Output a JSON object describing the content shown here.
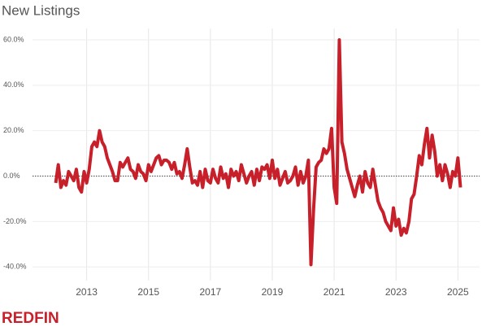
{
  "chart_data": {
    "type": "line",
    "title": "New Listings",
    "x": [
      2012,
      2012.083,
      2012.167,
      2012.25,
      2012.333,
      2012.417,
      2012.5,
      2012.583,
      2012.667,
      2012.75,
      2012.833,
      2012.917,
      2013,
      2013.083,
      2013.167,
      2013.25,
      2013.333,
      2013.417,
      2013.5,
      2013.583,
      2013.667,
      2013.75,
      2013.833,
      2013.917,
      2014,
      2014.083,
      2014.167,
      2014.25,
      2014.333,
      2014.417,
      2014.5,
      2014.583,
      2014.667,
      2014.75,
      2014.833,
      2014.917,
      2015,
      2015.083,
      2015.167,
      2015.25,
      2015.333,
      2015.417,
      2015.5,
      2015.583,
      2015.667,
      2015.75,
      2015.833,
      2015.917,
      2016,
      2016.083,
      2016.167,
      2016.25,
      2016.333,
      2016.417,
      2016.5,
      2016.583,
      2016.667,
      2016.75,
      2016.833,
      2016.917,
      2017,
      2017.083,
      2017.167,
      2017.25,
      2017.333,
      2017.417,
      2017.5,
      2017.583,
      2017.667,
      2017.75,
      2017.833,
      2017.917,
      2018,
      2018.083,
      2018.167,
      2018.25,
      2018.333,
      2018.417,
      2018.5,
      2018.583,
      2018.667,
      2018.75,
      2018.833,
      2018.917,
      2019,
      2019.083,
      2019.167,
      2019.25,
      2019.333,
      2019.417,
      2019.5,
      2019.583,
      2019.667,
      2019.75,
      2019.833,
      2019.917,
      2020,
      2020.083,
      2020.167,
      2020.25,
      2020.333,
      2020.417,
      2020.5,
      2020.583,
      2020.667,
      2020.75,
      2020.833,
      2020.917,
      2021,
      2021.083,
      2021.167,
      2021.25,
      2021.333,
      2021.417,
      2021.5,
      2021.583,
      2021.667,
      2021.75,
      2021.833,
      2021.917,
      2022,
      2022.083,
      2022.167,
      2022.25,
      2022.333,
      2022.417,
      2022.5,
      2022.583,
      2022.667,
      2022.75,
      2022.833,
      2022.917,
      2023,
      2023.083,
      2023.167,
      2023.25,
      2023.333,
      2023.417,
      2023.5,
      2023.583,
      2023.667,
      2023.75,
      2023.833,
      2023.917,
      2024,
      2024.083,
      2024.167,
      2024.25,
      2024.333,
      2024.417,
      2024.5,
      2024.583,
      2024.667,
      2024.75,
      2024.833,
      2024.917,
      2025,
      2025.083
    ],
    "series": [
      {
        "color": "#c8202a",
        "values": [
          -3,
          5,
          -5,
          -2,
          -4,
          2,
          0,
          -2,
          3,
          -5,
          -7,
          2,
          -3,
          3,
          13,
          15,
          13,
          20,
          15,
          13,
          8,
          5,
          2,
          -2,
          -2,
          6,
          4,
          6,
          8,
          3,
          2,
          -1,
          5,
          2,
          1,
          -2,
          5,
          2,
          5,
          8,
          9,
          5,
          7,
          7,
          6,
          3,
          6,
          1,
          2,
          -1,
          5,
          12,
          4,
          -3,
          -2,
          -4,
          2,
          -5,
          3,
          -2,
          -3,
          3,
          -1,
          -3,
          4,
          -1,
          1,
          -5,
          3,
          0,
          2,
          -2,
          5,
          1,
          -3,
          0,
          2,
          -4,
          3,
          -2,
          4,
          3,
          5,
          -1,
          7,
          -1,
          3,
          -4,
          -1,
          2,
          -3,
          -2,
          0,
          4,
          -4,
          2,
          -3,
          0,
          7,
          -39,
          -15,
          4,
          6,
          7,
          12,
          10,
          12,
          21,
          -5,
          -12,
          60,
          15,
          10,
          3,
          -1,
          -5,
          -9,
          -4,
          0,
          -7,
          2,
          -3,
          -5,
          3,
          -4,
          -11,
          -14,
          -16,
          -20,
          -22,
          -24,
          -14,
          -22,
          -19,
          -26,
          -23,
          -25,
          -20,
          -10,
          -8,
          0,
          9,
          5,
          14,
          21,
          8,
          18,
          11,
          0,
          5,
          -2,
          5,
          1,
          -5,
          2,
          0,
          8,
          -5
        ]
      }
    ],
    "xlim": [
      2011.25,
      2025.7
    ],
    "xticks": [
      2013,
      2015,
      2017,
      2019,
      2021,
      2023,
      2025
    ],
    "ylim": [
      -46,
      65
    ],
    "yticks": [
      {
        "value": -40,
        "label": "-40.0%"
      },
      {
        "value": -20,
        "label": "-20.0%"
      },
      {
        "value": 0,
        "label": "0.0%"
      },
      {
        "value": 20,
        "label": "20.0%"
      },
      {
        "value": 40,
        "label": "40.0%"
      },
      {
        "value": 60,
        "label": "60.0%"
      }
    ],
    "grid": true,
    "brand": "REDFIN"
  }
}
